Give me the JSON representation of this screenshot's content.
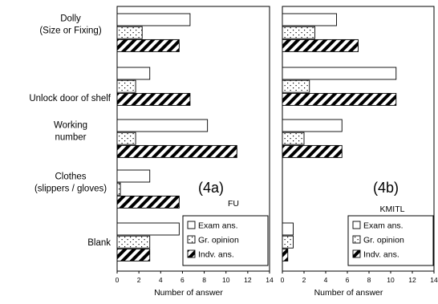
{
  "chart_data": [
    {
      "type": "bar",
      "orientation": "horizontal",
      "panel_label": "(4a)",
      "group_title": "FU",
      "xlabel": "Number of answer",
      "xlim": [
        0,
        14
      ],
      "xticks": [
        "0",
        "2",
        "4",
        "6",
        "8",
        "10",
        "12",
        "14"
      ],
      "categories": [
        "Dolly\n(Size or Fixing)",
        "Unlock door of shelf",
        "Working\nnumber",
        "Clothes\n(slippers / gloves)",
        "Blank"
      ],
      "series": [
        {
          "name": "Exam ans.",
          "pattern": "blank",
          "values": [
            6.7,
            3.0,
            8.3,
            3.0,
            5.7
          ]
        },
        {
          "name": "Gr. opinion",
          "pattern": "dots",
          "values": [
            2.3,
            1.7,
            1.7,
            0.3,
            3.0
          ]
        },
        {
          "name": "Indv. ans.",
          "pattern": "stripes",
          "values": [
            5.7,
            6.7,
            11.0,
            5.7,
            3.0
          ]
        }
      ],
      "legend_position": "bottom-right"
    },
    {
      "type": "bar",
      "orientation": "horizontal",
      "panel_label": "(4b)",
      "group_title": "KMITL",
      "xlabel": "Number of answer",
      "xlim": [
        0,
        14
      ],
      "xticks": [
        "0",
        "2",
        "4",
        "6",
        "8",
        "10",
        "12",
        "14"
      ],
      "categories": [
        "Dolly\n(Size or Fixing)",
        "Unlock door of shelf",
        "Working\nnumber",
        "Clothes\n(slippers / gloves)",
        "Blank"
      ],
      "series": [
        {
          "name": "Exam ans.",
          "pattern": "blank",
          "values": [
            5.0,
            10.5,
            5.5,
            0,
            1.0
          ]
        },
        {
          "name": "Gr. opinion",
          "pattern": "dots",
          "values": [
            3.0,
            2.5,
            2.0,
            0,
            1.0
          ]
        },
        {
          "name": "Indv. ans.",
          "pattern": "stripes",
          "values": [
            7.0,
            10.5,
            5.5,
            0,
            0.5
          ]
        }
      ],
      "legend_position": "bottom-right"
    }
  ]
}
